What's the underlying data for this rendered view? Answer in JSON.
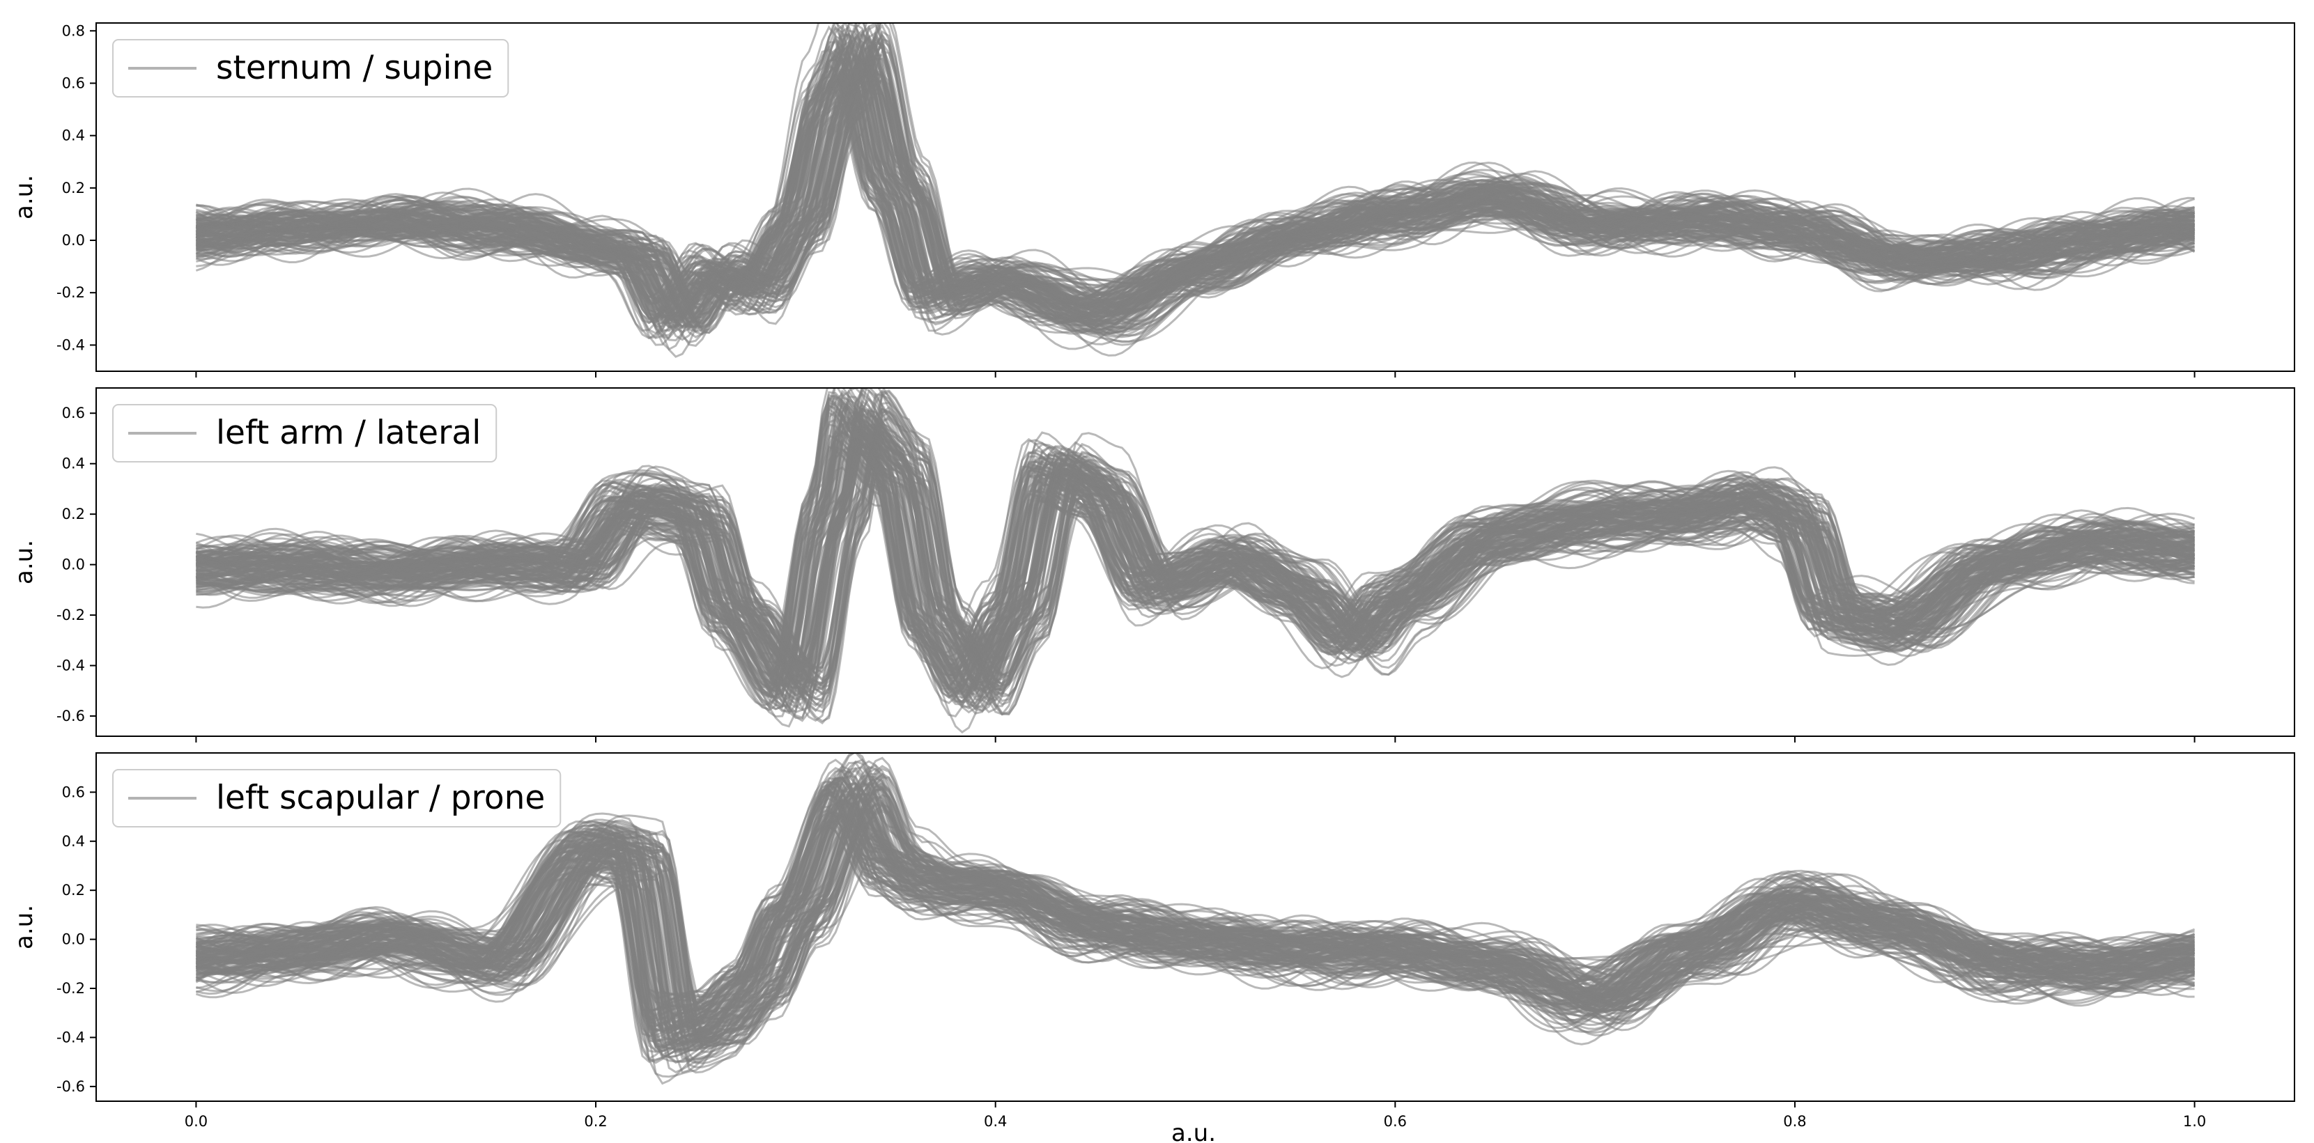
{
  "figure": {
    "xlabel": "a.u."
  },
  "chart_data": [
    {
      "type": "line",
      "legend": "sternum / supine",
      "legend_position": "top-left",
      "ylabel": "a.u.",
      "xlim": [
        -0.05,
        1.05
      ],
      "ylim": [
        -0.5,
        0.83
      ],
      "xticks": [
        "0.0",
        "0.2",
        "0.4",
        "0.6",
        "0.8",
        "1.0"
      ],
      "yticks": [
        "-0.4",
        "-0.2",
        "0.0",
        "0.2",
        "0.4",
        "0.6",
        "0.8"
      ],
      "show_xtick_labels": false,
      "grid": false,
      "line_color": "#808080",
      "ensemble_count": 140,
      "band_halfwidth": 0.05,
      "mean_waveform": {
        "x": [
          0.0,
          0.05,
          0.1,
          0.15,
          0.2,
          0.22,
          0.24,
          0.26,
          0.28,
          0.3,
          0.32,
          0.33,
          0.35,
          0.37,
          0.4,
          0.45,
          0.5,
          0.55,
          0.6,
          0.65,
          0.7,
          0.75,
          0.8,
          0.85,
          0.9,
          0.95,
          1.0
        ],
        "y": [
          0.02,
          0.04,
          0.07,
          0.05,
          -0.03,
          -0.06,
          -0.3,
          -0.12,
          -0.18,
          0.05,
          0.55,
          0.72,
          0.2,
          -0.22,
          -0.15,
          -0.28,
          -0.12,
          0.02,
          0.1,
          0.16,
          0.05,
          0.08,
          0.04,
          -0.08,
          -0.06,
          0.0,
          0.05
        ]
      }
    },
    {
      "type": "line",
      "legend": "left arm / lateral",
      "legend_position": "top-left",
      "ylabel": "a.u.",
      "xlim": [
        -0.05,
        1.05
      ],
      "ylim": [
        -0.68,
        0.7
      ],
      "xticks": [
        "0.0",
        "0.2",
        "0.4",
        "0.6",
        "0.8",
        "1.0"
      ],
      "yticks": [
        "-0.6",
        "-0.4",
        "-0.2",
        "0.0",
        "0.2",
        "0.4",
        "0.6"
      ],
      "show_xtick_labels": false,
      "grid": false,
      "line_color": "#808080",
      "ensemble_count": 140,
      "band_halfwidth": 0.07,
      "mean_waveform": {
        "x": [
          0.0,
          0.05,
          0.1,
          0.15,
          0.19,
          0.22,
          0.25,
          0.27,
          0.3,
          0.32,
          0.33,
          0.35,
          0.37,
          0.39,
          0.41,
          0.43,
          0.45,
          0.48,
          0.52,
          0.55,
          0.58,
          0.6,
          0.65,
          0.7,
          0.75,
          0.78,
          0.8,
          0.82,
          0.85,
          0.9,
          0.95,
          1.0
        ],
        "y": [
          -0.02,
          -0.01,
          -0.03,
          0.0,
          -0.02,
          0.25,
          0.2,
          -0.2,
          -0.5,
          0.2,
          0.58,
          0.4,
          -0.25,
          -0.48,
          -0.2,
          0.38,
          0.3,
          -0.1,
          0.02,
          -0.1,
          -0.3,
          -0.15,
          0.1,
          0.18,
          0.2,
          0.25,
          0.18,
          -0.2,
          -0.25,
          0.0,
          0.08,
          0.05
        ]
      }
    },
    {
      "type": "line",
      "legend": "left scapular / prone",
      "legend_position": "top-left",
      "ylabel": "a.u.",
      "xlim": [
        -0.05,
        1.05
      ],
      "ylim": [
        -0.66,
        0.76
      ],
      "xticks": [
        "0.0",
        "0.2",
        "0.4",
        "0.6",
        "0.8",
        "1.0"
      ],
      "yticks": [
        "-0.6",
        "-0.4",
        "-0.2",
        "0.0",
        "0.2",
        "0.4",
        "0.6"
      ],
      "show_xtick_labels": true,
      "grid": false,
      "line_color": "#808080",
      "ensemble_count": 140,
      "band_halfwidth": 0.07,
      "mean_waveform": {
        "x": [
          0.0,
          0.05,
          0.1,
          0.15,
          0.2,
          0.22,
          0.24,
          0.26,
          0.28,
          0.3,
          0.33,
          0.35,
          0.37,
          0.4,
          0.45,
          0.5,
          0.55,
          0.6,
          0.65,
          0.7,
          0.75,
          0.8,
          0.85,
          0.9,
          0.95,
          1.0
        ],
        "y": [
          -0.08,
          -0.05,
          0.0,
          -0.1,
          0.38,
          0.35,
          -0.4,
          -0.35,
          -0.2,
          0.1,
          0.6,
          0.3,
          0.22,
          0.2,
          0.05,
          0.0,
          -0.05,
          -0.05,
          -0.1,
          -0.25,
          -0.05,
          0.15,
          0.05,
          -0.1,
          -0.12,
          -0.08
        ]
      }
    }
  ]
}
